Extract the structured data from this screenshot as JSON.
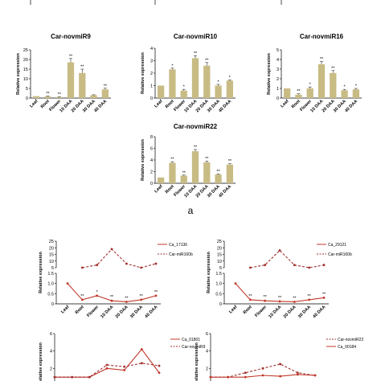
{
  "panel_a_label": "a",
  "colors": {
    "bar": "#c8bb84",
    "axis": "#000000",
    "line_red": "#c0392b",
    "line_dark": "#a23030"
  },
  "chart_data": [
    {
      "type": "bar",
      "title": "Car-novmiR9",
      "ylabel": "Relative expression",
      "categories": [
        "Leaf",
        "Root",
        "Flower",
        "10 DAA",
        "20 DAA",
        "30 DAA",
        "40 DAA"
      ],
      "values": [
        1,
        0.8,
        0.5,
        18.5,
        13,
        1.5,
        4.5
      ],
      "errors": [
        0,
        0.2,
        0.2,
        2,
        2,
        0.2,
        0.6
      ],
      "significance": [
        "",
        "**",
        "**",
        "**",
        "**",
        "",
        "**"
      ],
      "ylim": [
        0,
        25
      ],
      "yticks": [
        0,
        5,
        10,
        15,
        20,
        25
      ]
    },
    {
      "type": "bar",
      "title": "Car-novmiR10",
      "ylabel": "Relative expression",
      "categories": [
        "Leaf",
        "Root",
        "Flower",
        "10 DAA",
        "20 DAA",
        "30 DAA",
        "40 DAA"
      ],
      "values": [
        1,
        2.3,
        0.6,
        3.2,
        2.6,
        1.0,
        1.4
      ],
      "errors": [
        0,
        0.1,
        0.1,
        0.2,
        0.25,
        0.1,
        0.05
      ],
      "significance": [
        "",
        "*",
        "*",
        "**",
        "**",
        "*",
        "*"
      ],
      "ylim": [
        0,
        4
      ],
      "yticks": [
        0,
        1,
        2,
        3,
        4
      ]
    },
    {
      "type": "bar",
      "title": "Car-novmiR16",
      "ylabel": "Relative expression",
      "categories": [
        "Leaf",
        "Root",
        "Flower",
        "10 DAA",
        "20 DAA",
        "30 DAA",
        "40 DAA"
      ],
      "values": [
        1,
        0.35,
        1.0,
        3.5,
        2.6,
        0.8,
        0.9
      ],
      "errors": [
        0,
        0.1,
        0.15,
        0.3,
        0.25,
        0.1,
        0.1
      ],
      "significance": [
        "",
        "**",
        "*",
        "**",
        "**",
        "*",
        "*"
      ],
      "ylim": [
        0,
        5
      ],
      "yticks": [
        0,
        1,
        2,
        3,
        4,
        5
      ]
    },
    {
      "type": "bar",
      "title": "Car-novmiR22",
      "ylabel": "Relative expression",
      "categories": [
        "Leaf",
        "Root",
        "Flower",
        "10 DAA",
        "20 DAA",
        "30 DAA",
        "40 DAA"
      ],
      "values": [
        1,
        3.5,
        1.3,
        5.5,
        3.6,
        1.5,
        3.2
      ],
      "errors": [
        0,
        0.2,
        0.1,
        0.3,
        0.2,
        0.1,
        0.15
      ],
      "significance": [
        "",
        "**",
        "**",
        "**",
        "**",
        "**",
        "**"
      ],
      "ylim": [
        0,
        8
      ],
      "yticks": [
        0,
        2,
        4,
        6,
        8
      ]
    },
    {
      "type": "line",
      "ylabel": "Relative expression",
      "categories": [
        "Leaf",
        "Root",
        "Flower",
        "10 DAA",
        "20 DAA",
        "30 DAA",
        "40 DAA"
      ],
      "yticks_lower": [
        "0",
        "0.5",
        "1.0",
        "1.5"
      ],
      "yticks_upper": [
        "5",
        "10",
        "15",
        "20",
        "25"
      ],
      "series": [
        {
          "name": "Ca_17136",
          "style": "solid",
          "values": [
            1.0,
            0.2,
            0.4,
            0.15,
            0.1,
            0.2,
            0.4
          ],
          "significance": [
            "",
            "**",
            "*",
            "**",
            "**",
            "**",
            "**"
          ]
        },
        {
          "name": "Car-miR160b",
          "style": "dashed",
          "values": [
            null,
            5,
            7,
            19,
            8,
            5,
            8
          ],
          "significance": [
            "",
            "",
            "",
            "",
            "",
            "",
            ""
          ]
        }
      ]
    },
    {
      "type": "line",
      "ylabel": "Relative expression",
      "categories": [
        "Leaf",
        "Root",
        "Flower",
        "10 DAA",
        "20 DAA",
        "30 DAA",
        "40 DAA"
      ],
      "yticks_lower": [
        "0",
        "0.5",
        "1.0",
        "1.5"
      ],
      "yticks_upper": [
        "5",
        "10",
        "15",
        "20",
        "25"
      ],
      "series": [
        {
          "name": "Ca_29121",
          "style": "solid",
          "values": [
            1.0,
            0.2,
            0.15,
            0.12,
            0.1,
            0.2,
            0.3
          ],
          "significance": [
            "",
            "**",
            "**",
            "**",
            "**",
            "**",
            "**"
          ]
        },
        {
          "name": "Car-miR160b",
          "style": "dashed",
          "values": [
            null,
            5,
            7,
            18,
            7,
            5,
            7
          ],
          "significance": [
            "",
            "",
            "",
            "",
            "",
            "",
            ""
          ]
        }
      ]
    },
    {
      "type": "line",
      "ylabel": "Relative expression",
      "categories": [
        "Leaf",
        "Root",
        "Flower",
        "10 DAA",
        "20 DAA",
        "30 DAA",
        "40 DAA"
      ],
      "yticks": [
        "2",
        "4",
        "6"
      ],
      "ylim": [
        0,
        6
      ],
      "series": [
        {
          "name": "Ca_01801",
          "style": "solid",
          "values": [
            1,
            1,
            1,
            2.0,
            1.8,
            4.2,
            1.5
          ]
        },
        {
          "name": "Car-novmiR9",
          "style": "dashed",
          "values": [
            1,
            1,
            1,
            2.4,
            2.2,
            2.6,
            2.3
          ]
        }
      ]
    },
    {
      "type": "line",
      "ylabel": "Relative expression",
      "categories": [
        "Leaf",
        "Root",
        "Flower",
        "10 DAA",
        "20 DAA",
        "30 DAA",
        "40 DAA"
      ],
      "yticks": [
        "2",
        "4",
        "6"
      ],
      "ylim": [
        0,
        6
      ],
      "series": [
        {
          "name": "Car-novmiR22",
          "style": "dashed",
          "values": [
            1,
            1,
            1.5,
            2.0,
            2.5,
            1.5,
            1.2
          ]
        },
        {
          "name": "Ca_00184",
          "style": "solid",
          "values": [
            1,
            1,
            1,
            1.2,
            1.1,
            1.3,
            1.2
          ]
        }
      ]
    }
  ]
}
